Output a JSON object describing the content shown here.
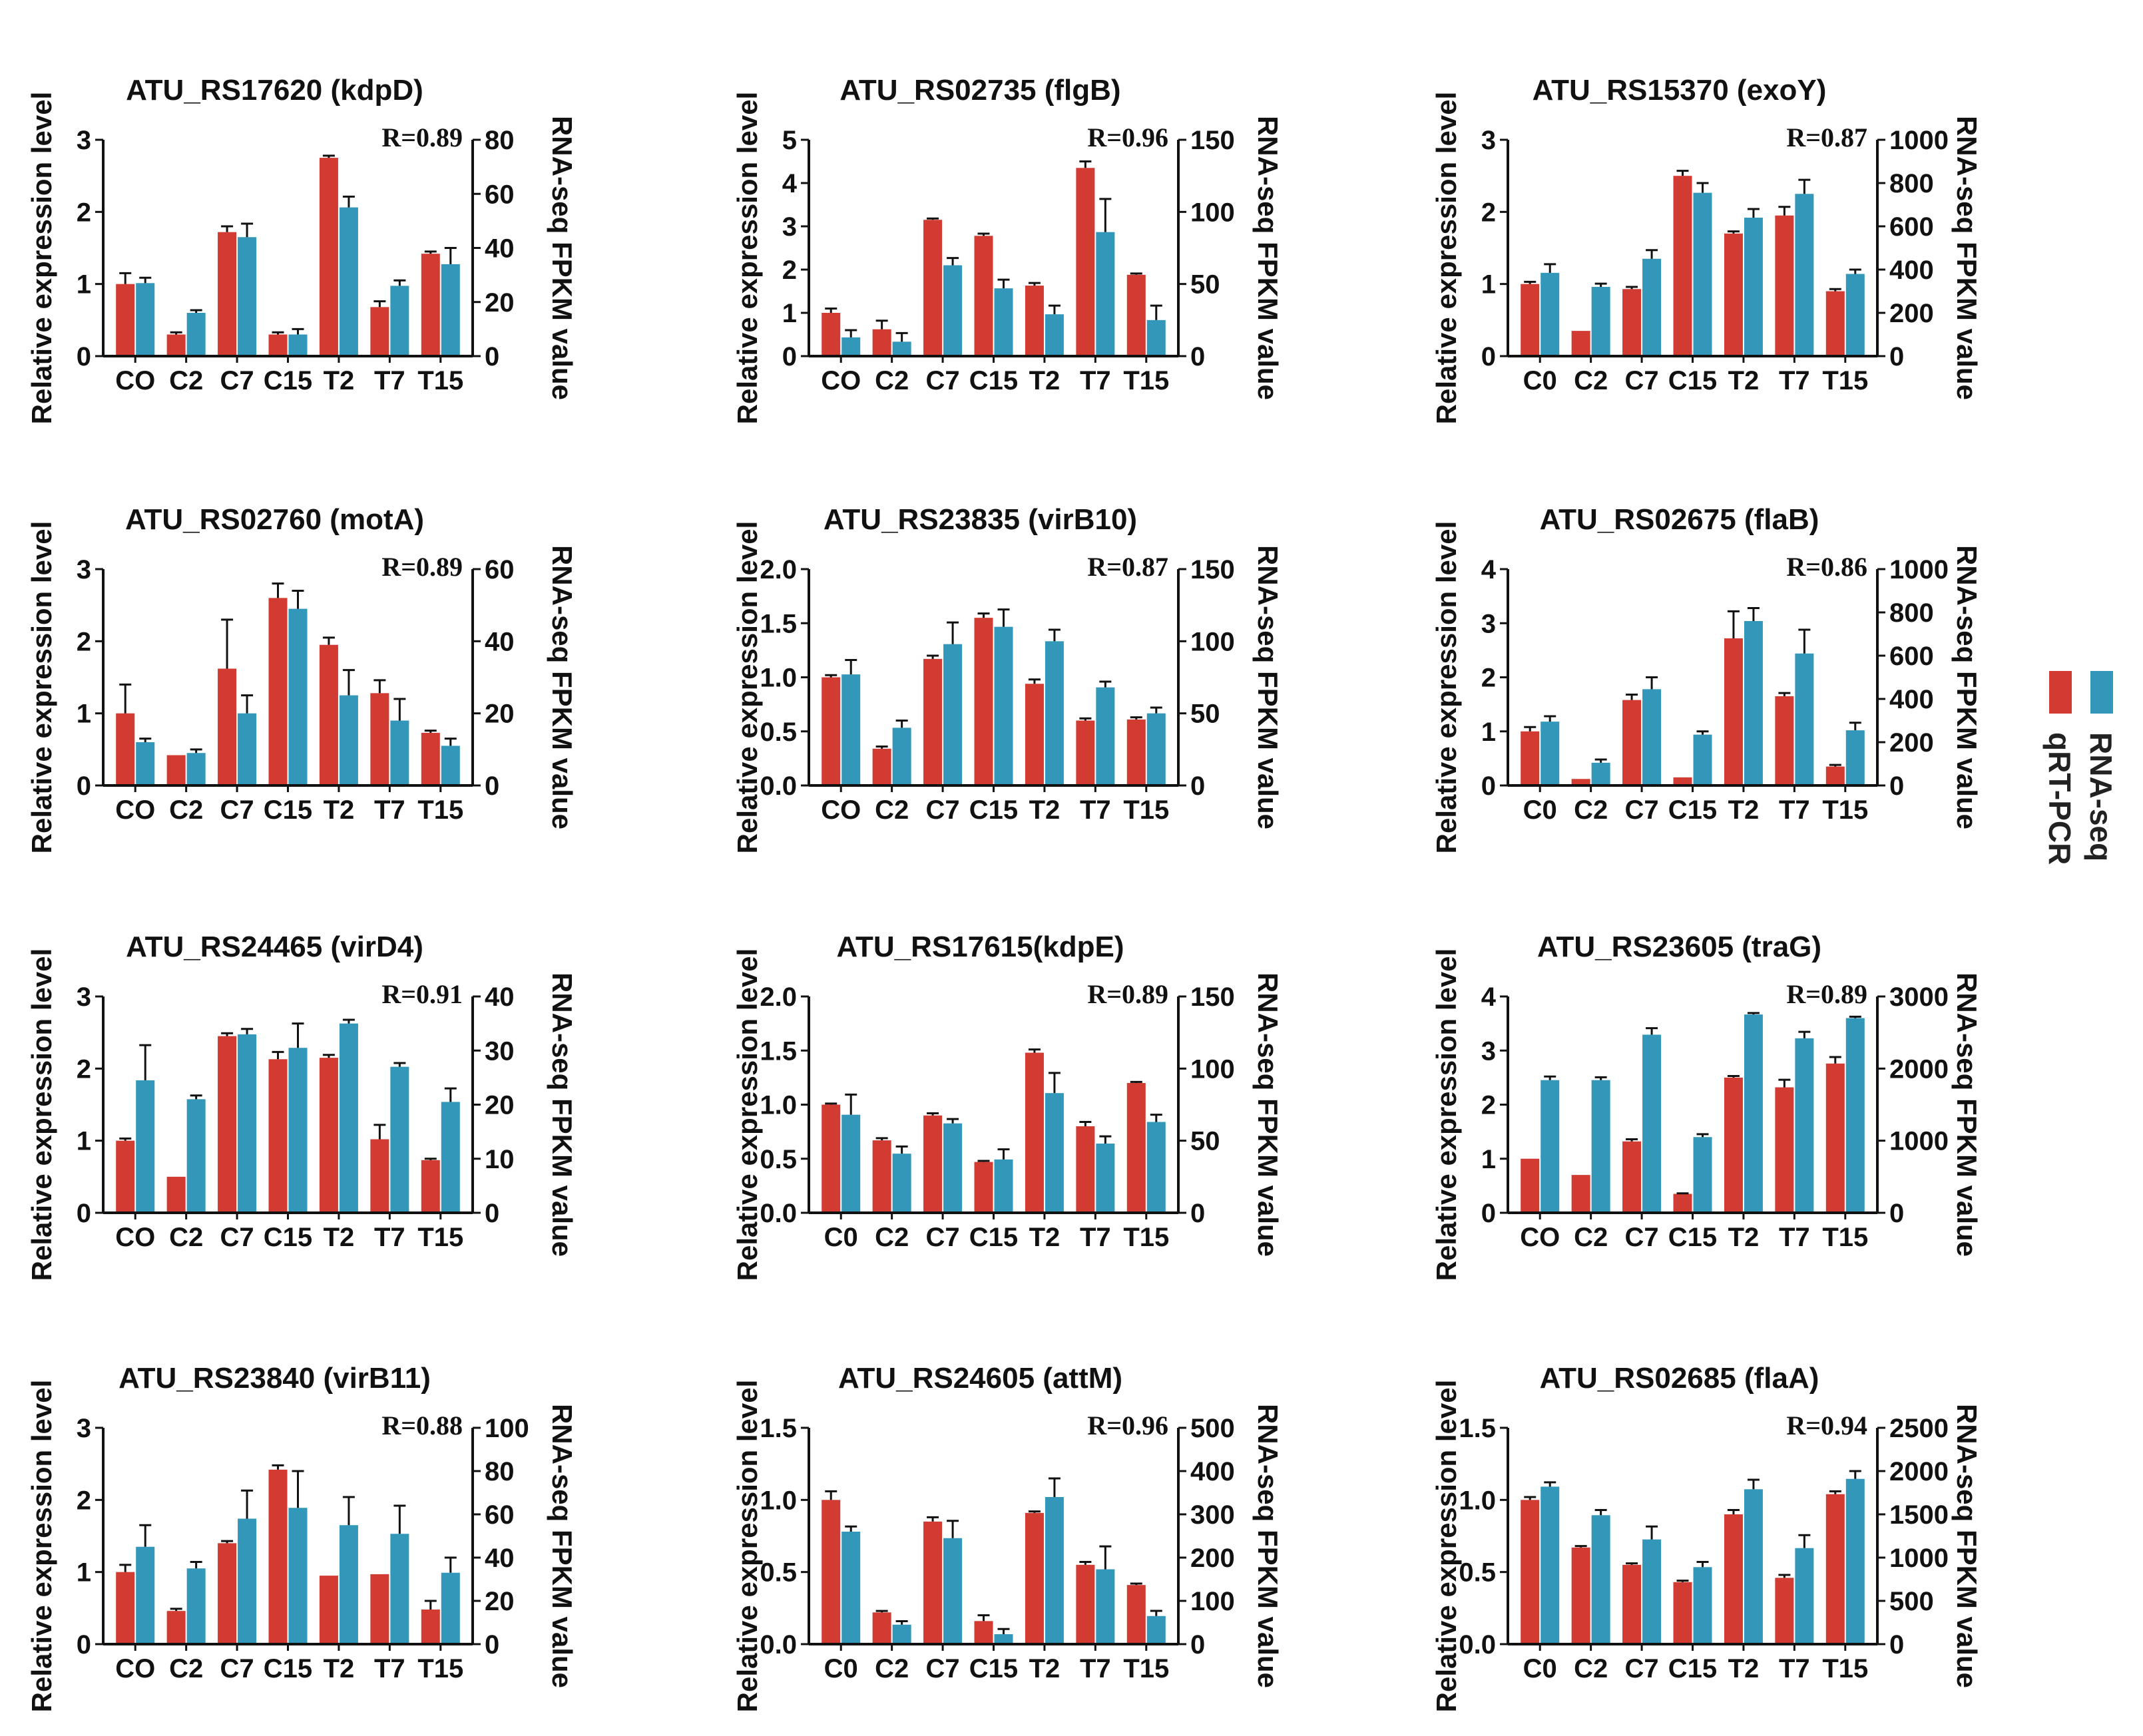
{
  "figure": {
    "legend": {
      "series": [
        "qRT-PCR",
        "RNA-seq"
      ],
      "placement": "right-middle"
    },
    "colors": {
      "qrtpcr": "#d23b32",
      "rnaseq": "#3397b9"
    }
  },
  "chart_data": [
    {
      "type": "bar",
      "title": "ATU_RS17620 (kdpD)",
      "r_label": "R=0.89",
      "categories": [
        "CO",
        "C2",
        "C7",
        "C15",
        "T2",
        "T7",
        "T15"
      ],
      "ylabel": "Relative expression level",
      "y2label": "RNA-seq FPKM value",
      "ylim": [
        0,
        3
      ],
      "yticks": [
        "0",
        "1",
        "2",
        "3"
      ],
      "y2lim": [
        0,
        80
      ],
      "y2ticks": [
        "0",
        "20",
        "40",
        "60",
        "80"
      ],
      "series": [
        {
          "name": "qRT-PCR",
          "axis": "left",
          "values": [
            1.0,
            0.3,
            1.72,
            0.3,
            2.75,
            0.68,
            1.42
          ],
          "err": [
            0.15,
            0.03,
            0.08,
            0.03,
            0.03,
            0.08,
            0.03
          ]
        },
        {
          "name": "RNA-seq",
          "axis": "right",
          "values": [
            27,
            16,
            44,
            8,
            55,
            26,
            34
          ],
          "err": [
            2,
            1,
            5,
            2,
            4,
            2,
            6
          ]
        }
      ]
    },
    {
      "type": "bar",
      "title": "ATU_RS02735  (flgB)",
      "r_label": "R=0.96",
      "categories": [
        "CO",
        "C2",
        "C7",
        "C15",
        "T2",
        "T7",
        "T15"
      ],
      "ylabel": "Relative expression level",
      "y2label": "RNA-seq FPKM value",
      "ylim": [
        0,
        5
      ],
      "yticks": [
        "0",
        "1",
        "2",
        "3",
        "4",
        "5"
      ],
      "y2lim": [
        0,
        150
      ],
      "y2ticks": [
        "0",
        "50",
        "100",
        "150"
      ],
      "series": [
        {
          "name": "qRT-PCR",
          "axis": "left",
          "values": [
            1.0,
            0.62,
            3.15,
            2.78,
            1.63,
            4.35,
            1.88
          ],
          "err": [
            0.1,
            0.2,
            0.03,
            0.05,
            0.06,
            0.15,
            0.03
          ]
        },
        {
          "name": "RNA-seq",
          "axis": "right",
          "values": [
            13,
            10,
            63,
            47,
            29,
            86,
            25
          ],
          "err": [
            5,
            6,
            5,
            6,
            6,
            23,
            10
          ]
        }
      ]
    },
    {
      "type": "bar",
      "title": "ATU_RS15370 (exoY)",
      "r_label": "R=0.87",
      "categories": [
        "C0",
        "C2",
        "C7",
        "C15",
        "T2",
        "T7",
        "T15"
      ],
      "ylabel": "Relative expression level",
      "y2label": "RNA-seq FPKM value",
      "ylim": [
        0,
        3
      ],
      "yticks": [
        "0",
        "1",
        "2",
        "3"
      ],
      "y2lim": [
        0,
        1000
      ],
      "y2ticks": [
        "0",
        "200",
        "400",
        "600",
        "800",
        "1000"
      ],
      "series": [
        {
          "name": "qRT-PCR",
          "axis": "left",
          "values": [
            1.0,
            0.35,
            0.93,
            2.5,
            1.7,
            1.95,
            0.9
          ],
          "err": [
            0.03,
            0.0,
            0.03,
            0.07,
            0.03,
            0.12,
            0.03
          ]
        },
        {
          "name": "RNA-seq",
          "axis": "right",
          "values": [
            385,
            320,
            450,
            755,
            640,
            750,
            380
          ],
          "err": [
            40,
            15,
            40,
            45,
            40,
            65,
            20
          ]
        }
      ]
    },
    {
      "type": "bar",
      "title": "ATU_RS02760 (motA)",
      "r_label": "R=0.89",
      "categories": [
        "CO",
        "C2",
        "C7",
        "C15",
        "T2",
        "T7",
        "T15"
      ],
      "ylabel": "Relative expression level",
      "y2label": "RNA-seq FPKM value",
      "ylim": [
        0,
        3
      ],
      "yticks": [
        "0",
        "1",
        "2",
        "3"
      ],
      "y2lim": [
        0,
        60
      ],
      "y2ticks": [
        "0",
        "20",
        "40",
        "60"
      ],
      "series": [
        {
          "name": "qRT-PCR",
          "axis": "left",
          "values": [
            1.0,
            0.42,
            1.62,
            2.6,
            1.95,
            1.28,
            0.73
          ],
          "err": [
            0.4,
            0.0,
            0.68,
            0.2,
            0.1,
            0.18,
            0.03
          ]
        },
        {
          "name": "RNA-seq",
          "axis": "right",
          "values": [
            12,
            9,
            20,
            49,
            25,
            18,
            11
          ],
          "err": [
            1,
            1,
            5,
            5,
            7,
            6,
            2
          ]
        }
      ]
    },
    {
      "type": "bar",
      "title": "ATU_RS23835 (virB10)",
      "r_label": "R=0.87",
      "categories": [
        "CO",
        "C2",
        "C7",
        "C15",
        "T2",
        "T7",
        "T15"
      ],
      "ylabel": "Relative expression level",
      "y2label": "RNA-seq FPKM value",
      "ylim": [
        0,
        2.0
      ],
      "yticks": [
        "0.0",
        "0.5",
        "1.0",
        "1.5",
        "2.0"
      ],
      "y2lim": [
        0,
        150
      ],
      "y2ticks": [
        "0",
        "50",
        "100",
        "150"
      ],
      "series": [
        {
          "name": "qRT-PCR",
          "axis": "left",
          "values": [
            1.0,
            0.34,
            1.17,
            1.55,
            0.94,
            0.6,
            0.61
          ],
          "err": [
            0.02,
            0.02,
            0.03,
            0.04,
            0.04,
            0.02,
            0.02
          ]
        },
        {
          "name": "RNA-seq",
          "axis": "right",
          "values": [
            77,
            40,
            98,
            110,
            100,
            68,
            50
          ],
          "err": [
            10,
            5,
            15,
            12,
            8,
            4,
            4
          ]
        }
      ]
    },
    {
      "type": "bar",
      "title": "ATU_RS02675  (flaB)",
      "r_label": "R=0.86",
      "categories": [
        "C0",
        "C2",
        "C7",
        "C15",
        "T2",
        "T7",
        "T15"
      ],
      "ylabel": "Relative expression level",
      "y2label": "RNA-seq FPKM value",
      "ylim": [
        0,
        4
      ],
      "yticks": [
        "0",
        "1",
        "2",
        "3",
        "4"
      ],
      "y2lim": [
        0,
        1000
      ],
      "y2ticks": [
        "0",
        "200",
        "400",
        "600",
        "800",
        "1000"
      ],
      "series": [
        {
          "name": "qRT-PCR",
          "axis": "left",
          "values": [
            1.0,
            0.12,
            1.58,
            0.15,
            2.72,
            1.65,
            0.35
          ],
          "err": [
            0.08,
            0.0,
            0.1,
            0.0,
            0.5,
            0.06,
            0.03
          ]
        },
        {
          "name": "RNA-seq",
          "axis": "right",
          "values": [
            295,
            105,
            445,
            235,
            760,
            610,
            255
          ],
          "err": [
            25,
            15,
            55,
            15,
            60,
            110,
            35
          ]
        }
      ]
    },
    {
      "type": "bar",
      "title": "ATU_RS24465 (virD4)",
      "r_label": "R=0.91",
      "categories": [
        "CO",
        "C2",
        "C7",
        "C15",
        "T2",
        "T7",
        "T15"
      ],
      "ylabel": "Relative expression level",
      "y2label": "RNA-seq FPKM value",
      "ylim": [
        0,
        3
      ],
      "yticks": [
        "0",
        "1",
        "2",
        "3"
      ],
      "y2lim": [
        0,
        40
      ],
      "y2ticks": [
        "0",
        "10",
        "20",
        "30",
        "40"
      ],
      "series": [
        {
          "name": "qRT-PCR",
          "axis": "left",
          "values": [
            1.0,
            0.5,
            2.45,
            2.13,
            2.15,
            1.02,
            0.73
          ],
          "err": [
            0.03,
            0.0,
            0.04,
            0.1,
            0.04,
            0.2,
            0.02
          ]
        },
        {
          "name": "RNA-seq",
          "axis": "right",
          "values": [
            24.5,
            21,
            33,
            30.5,
            35,
            27,
            20.5
          ],
          "err": [
            6.5,
            0.7,
            1,
            4.5,
            0.7,
            0.7,
            2.5
          ]
        }
      ]
    },
    {
      "type": "bar",
      "title": "ATU_RS17615(kdpE)",
      "r_label": "R=0.89",
      "categories": [
        "C0",
        "C2",
        "C7",
        "C15",
        "T2",
        "T7",
        "T15"
      ],
      "ylabel": "Relative expression level",
      "y2label": "RNA-seq FPKM value",
      "ylim": [
        0,
        2.0
      ],
      "yticks": [
        "0.0",
        "0.5",
        "1.0",
        "1.5",
        "2.0"
      ],
      "y2lim": [
        0,
        150
      ],
      "y2ticks": [
        "0",
        "50",
        "100",
        "150"
      ],
      "series": [
        {
          "name": "qRT-PCR",
          "axis": "left",
          "values": [
            1.0,
            0.67,
            0.9,
            0.47,
            1.48,
            0.8,
            1.2
          ],
          "err": [
            0.01,
            0.02,
            0.02,
            0.01,
            0.03,
            0.04,
            0.01
          ]
        },
        {
          "name": "RNA-seq",
          "axis": "right",
          "values": [
            68,
            41,
            62,
            37,
            83,
            48,
            63
          ],
          "err": [
            14,
            5,
            3,
            7,
            14,
            5,
            5
          ]
        }
      ]
    },
    {
      "type": "bar",
      "title": "ATU_RS23605 (traG)",
      "r_label": "R=0.89",
      "categories": [
        "CO",
        "C2",
        "C7",
        "C15",
        "T2",
        "T7",
        "T15"
      ],
      "ylabel": "Relative expression level",
      "y2label": "RNA-seq FPKM value",
      "ylim": [
        0,
        4
      ],
      "yticks": [
        "0",
        "1",
        "2",
        "3",
        "4"
      ],
      "y2lim": [
        0,
        3000
      ],
      "y2ticks": [
        "0",
        "1000",
        "2000",
        "3000"
      ],
      "series": [
        {
          "name": "qRT-PCR",
          "axis": "left",
          "values": [
            1.0,
            0.7,
            1.32,
            0.35,
            2.5,
            2.32,
            2.76
          ],
          "err": [
            0.0,
            0.0,
            0.04,
            0.01,
            0.03,
            0.14,
            0.12
          ]
        },
        {
          "name": "RNA-seq",
          "axis": "right",
          "values": [
            1840,
            1840,
            2470,
            1050,
            2750,
            2420,
            2700
          ],
          "err": [
            50,
            40,
            90,
            40,
            20,
            90,
            20
          ]
        }
      ]
    },
    {
      "type": "bar",
      "title": "ATU_RS23840 (virB11)",
      "r_label": "R=0.88",
      "categories": [
        "CO",
        "C2",
        "C7",
        "C15",
        "T2",
        "T7",
        "T15"
      ],
      "ylabel": "Relative expression level",
      "y2label": "RNA-seq FPKM value",
      "ylim": [
        0,
        3
      ],
      "yticks": [
        "0",
        "1",
        "2",
        "3"
      ],
      "y2lim": [
        0,
        100
      ],
      "y2ticks": [
        "0",
        "20",
        "40",
        "60",
        "80",
        "100"
      ],
      "series": [
        {
          "name": "qRT-PCR",
          "axis": "left",
          "values": [
            1.0,
            0.46,
            1.4,
            2.42,
            0.95,
            0.97,
            0.48
          ],
          "err": [
            0.1,
            0.03,
            0.03,
            0.06,
            0.0,
            0.0,
            0.12
          ]
        },
        {
          "name": "RNA-seq",
          "axis": "right",
          "values": [
            45,
            35,
            58,
            63,
            55,
            51,
            33
          ],
          "err": [
            10,
            3,
            13,
            17,
            13,
            13,
            7
          ]
        }
      ]
    },
    {
      "type": "bar",
      "title": "ATU_RS24605 (attM)",
      "r_label": "R=0.96",
      "categories": [
        "C0",
        "C2",
        "C7",
        "C15",
        "T2",
        "T7",
        "T15"
      ],
      "ylabel": "Relative expression level",
      "y2label": "RNA-seq FPKM value",
      "ylim": [
        0,
        1.5
      ],
      "yticks": [
        "0.0",
        "0.5",
        "1.0",
        "1.5"
      ],
      "y2lim": [
        0,
        500
      ],
      "y2ticks": [
        "0",
        "100",
        "200",
        "300",
        "400",
        "500"
      ],
      "series": [
        {
          "name": "qRT-PCR",
          "axis": "left",
          "values": [
            1.0,
            0.22,
            0.85,
            0.16,
            0.91,
            0.55,
            0.41
          ],
          "err": [
            0.06,
            0.01,
            0.03,
            0.04,
            0.01,
            0.02,
            0.01
          ]
        },
        {
          "name": "RNA-seq",
          "axis": "right",
          "values": [
            260,
            45,
            245,
            23,
            340,
            173,
            65
          ],
          "err": [
            12,
            8,
            40,
            12,
            43,
            53,
            12
          ]
        }
      ]
    },
    {
      "type": "bar",
      "title": "ATU_RS02685 (flaA)",
      "r_label": "R=0.94",
      "categories": [
        "C0",
        "C2",
        "C7",
        "C15",
        "T2",
        "T7",
        "T15"
      ],
      "ylabel": "Relative expression level",
      "y2label": "RNA-seq FPKM value",
      "ylim": [
        0,
        1.5
      ],
      "yticks": [
        "0.0",
        "0.5",
        "1.0",
        "1.5"
      ],
      "y2lim": [
        0,
        2500
      ],
      "y2ticks": [
        "0",
        "500",
        "1000",
        "1500",
        "2000",
        "2500"
      ],
      "series": [
        {
          "name": "qRT-PCR",
          "axis": "left",
          "values": [
            1.0,
            0.67,
            0.55,
            0.43,
            0.9,
            0.46,
            1.04
          ],
          "err": [
            0.02,
            0.01,
            0.01,
            0.01,
            0.03,
            0.02,
            0.02
          ]
        },
        {
          "name": "RNA-seq",
          "axis": "right",
          "values": [
            1820,
            1490,
            1210,
            890,
            1790,
            1110,
            1910
          ],
          "err": [
            50,
            60,
            150,
            60,
            110,
            150,
            90
          ]
        }
      ]
    }
  ]
}
